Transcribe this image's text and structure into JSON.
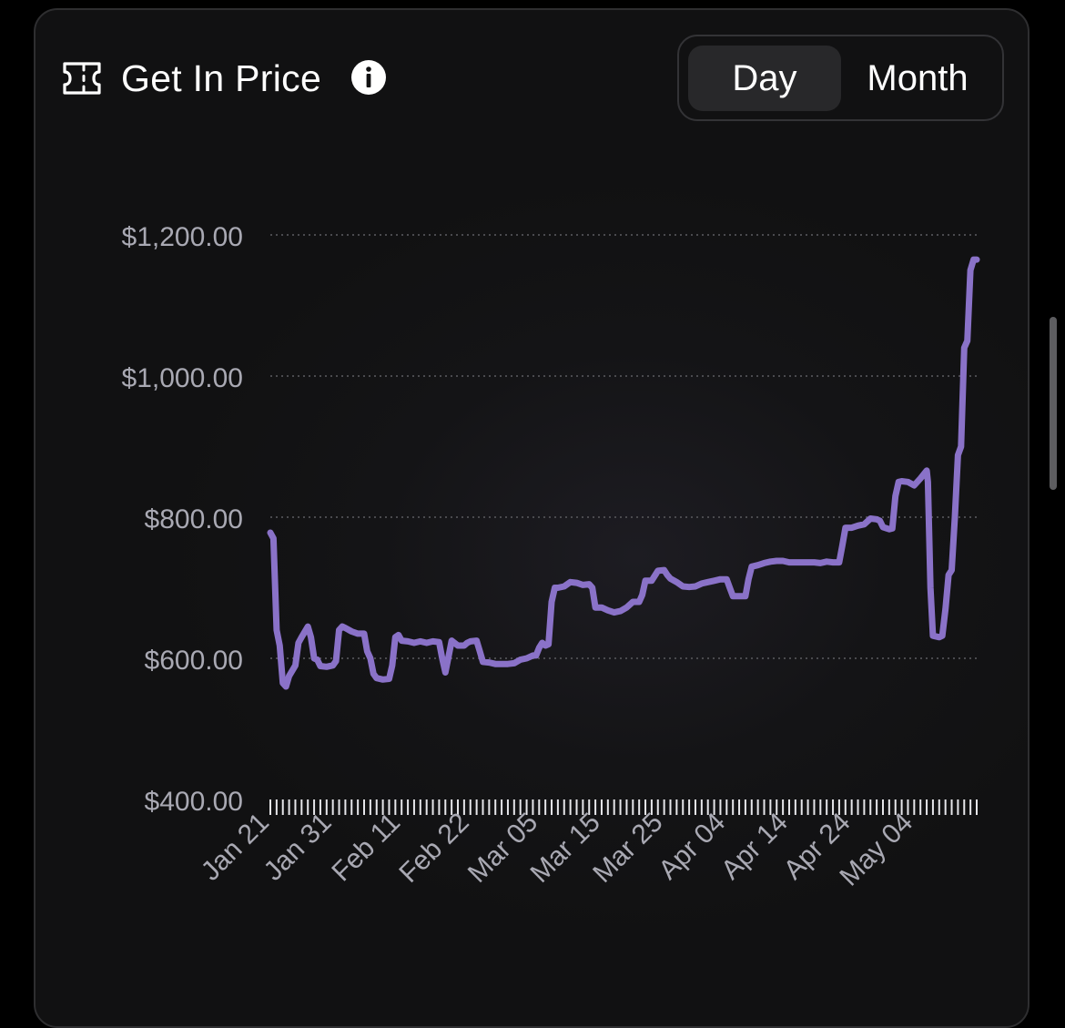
{
  "header": {
    "title": "Get In Price",
    "ticket_icon": "ticket-icon",
    "info_icon": "info-icon"
  },
  "toggle": {
    "day_label": "Day",
    "month_label": "Month",
    "selected": "Day"
  },
  "colors": {
    "line": "#8a72c8",
    "grid": "#4a4a4e",
    "axis_text": "#a9a9b3",
    "toggle_active_bg": "#28282a"
  },
  "chart_data": {
    "type": "line",
    "title": "",
    "xlabel": "",
    "ylabel": "",
    "ylim": [
      400,
      1200
    ],
    "y_ticks": [
      400,
      600,
      800,
      1000,
      1200
    ],
    "y_tick_labels": [
      "$400.00",
      "$600.00",
      "$800.00",
      "$1,000.00",
      "$1,200.00"
    ],
    "x_tick_labels": [
      "Jan 21",
      "Jan 31",
      "Feb 11",
      "Feb 22",
      "Mar 05",
      "Mar 15",
      "Mar 25",
      "Apr 04",
      "Apr 14",
      "Apr 24",
      "May 04"
    ],
    "grid": true,
    "series": [
      {
        "values": [
          [
            0,
            778
          ],
          [
            0.5,
            770
          ],
          [
            1,
            640
          ],
          [
            1.5,
            618
          ],
          [
            2,
            565
          ],
          [
            2.5,
            560
          ],
          [
            3,
            575
          ],
          [
            4,
            590
          ],
          [
            4.5,
            622
          ],
          [
            5,
            630
          ],
          [
            6,
            645
          ],
          [
            6.5,
            630
          ],
          [
            7,
            600
          ],
          [
            7.5,
            598
          ],
          [
            8,
            589
          ],
          [
            9,
            588
          ],
          [
            10,
            590
          ],
          [
            10.5,
            596
          ],
          [
            11,
            640
          ],
          [
            11.5,
            645
          ],
          [
            12,
            643
          ],
          [
            13,
            638
          ],
          [
            14,
            635
          ],
          [
            15,
            635
          ],
          [
            15.5,
            610
          ],
          [
            16,
            600
          ],
          [
            16.5,
            578
          ],
          [
            17,
            572
          ],
          [
            18,
            570
          ],
          [
            19,
            571
          ],
          [
            19.5,
            590
          ],
          [
            20,
            630
          ],
          [
            20.5,
            633
          ],
          [
            21,
            625
          ],
          [
            22,
            624
          ],
          [
            23,
            622
          ],
          [
            24,
            624
          ],
          [
            25,
            622
          ],
          [
            26,
            624
          ],
          [
            27,
            623
          ],
          [
            27.5,
            600
          ],
          [
            28,
            580
          ],
          [
            28.5,
            602
          ],
          [
            29,
            625
          ],
          [
            30,
            618
          ],
          [
            31,
            618
          ],
          [
            31.5,
            622
          ],
          [
            32,
            624
          ],
          [
            33,
            625
          ],
          [
            33.5,
            610
          ],
          [
            34,
            595
          ],
          [
            35,
            594
          ],
          [
            36,
            592
          ],
          [
            37,
            592
          ],
          [
            38,
            592
          ],
          [
            39,
            593
          ],
          [
            40,
            598
          ],
          [
            41,
            600
          ],
          [
            42,
            604
          ],
          [
            42.5,
            604
          ],
          [
            43,
            615
          ],
          [
            43.5,
            622
          ],
          [
            44,
            618
          ],
          [
            44.5,
            620
          ],
          [
            45,
            680
          ],
          [
            45.5,
            700
          ],
          [
            46,
            700
          ],
          [
            47,
            702
          ],
          [
            48,
            708
          ],
          [
            49,
            707
          ],
          [
            50,
            704
          ],
          [
            51,
            705
          ],
          [
            51.5,
            700
          ],
          [
            52,
            672
          ],
          [
            53,
            672
          ],
          [
            54,
            668
          ],
          [
            55,
            665
          ],
          [
            56,
            667
          ],
          [
            57,
            672
          ],
          [
            58,
            680
          ],
          [
            59,
            680
          ],
          [
            59.5,
            690
          ],
          [
            60,
            710
          ],
          [
            61,
            710
          ],
          [
            62,
            724
          ],
          [
            63,
            725
          ],
          [
            63.5,
            718
          ],
          [
            64,
            713
          ],
          [
            65,
            708
          ],
          [
            66,
            702
          ],
          [
            67,
            701
          ],
          [
            68,
            702
          ],
          [
            69,
            706
          ],
          [
            70,
            708
          ],
          [
            71,
            710
          ],
          [
            72,
            712
          ],
          [
            73,
            712
          ],
          [
            73.5,
            700
          ],
          [
            74,
            688
          ],
          [
            75,
            688
          ],
          [
            76,
            688
          ],
          [
            76.5,
            712
          ],
          [
            77,
            730
          ],
          [
            78,
            732
          ],
          [
            79,
            735
          ],
          [
            80,
            737
          ],
          [
            81,
            738
          ],
          [
            82,
            738
          ],
          [
            83,
            736
          ],
          [
            84,
            736
          ],
          [
            85,
            736
          ],
          [
            86,
            736
          ],
          [
            87,
            736
          ],
          [
            88,
            735
          ],
          [
            89,
            737
          ],
          [
            90,
            736
          ],
          [
            91,
            736
          ],
          [
            91.5,
            760
          ],
          [
            92,
            785
          ],
          [
            93,
            785
          ],
          [
            94,
            788
          ],
          [
            95,
            790
          ],
          [
            96,
            798
          ],
          [
            97,
            797
          ],
          [
            97.5,
            795
          ],
          [
            98,
            786
          ],
          [
            99,
            783
          ],
          [
            99.5,
            784
          ],
          [
            100,
            830
          ],
          [
            100.5,
            850
          ],
          [
            101,
            851
          ],
          [
            102,
            850
          ],
          [
            103,
            845
          ],
          [
            104,
            855
          ],
          [
            105,
            866
          ],
          [
            105.2,
            850
          ],
          [
            105.6,
            700
          ],
          [
            106,
            632
          ],
          [
            107,
            630
          ],
          [
            107.5,
            632
          ],
          [
            108,
            670
          ],
          [
            108.5,
            718
          ],
          [
            109,
            725
          ],
          [
            109.5,
            800
          ],
          [
            110,
            888
          ],
          [
            110.5,
            900
          ],
          [
            111,
            1040
          ],
          [
            111.5,
            1050
          ],
          [
            112,
            1150
          ],
          [
            112.5,
            1165
          ],
          [
            113,
            1165
          ]
        ]
      }
    ]
  }
}
